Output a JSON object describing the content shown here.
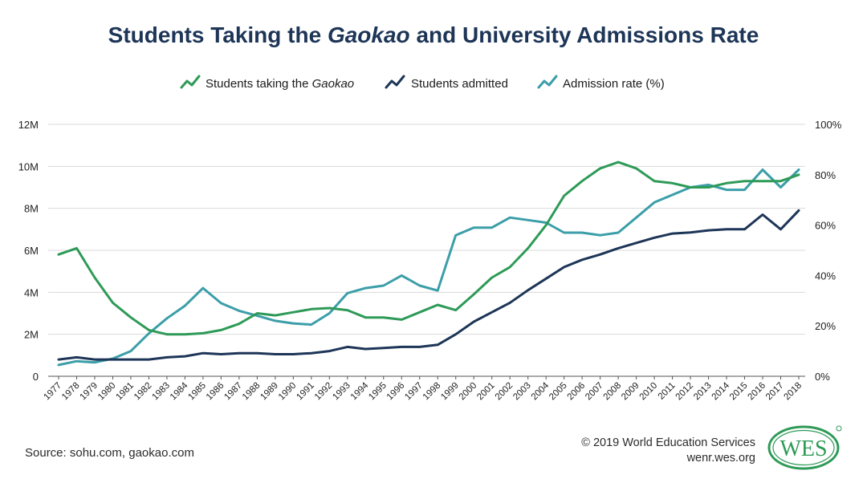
{
  "header": {
    "title_prefix": "Students Taking the",
    "title_italic": "Gaokao",
    "title_suffix": "and University Admissions Rate"
  },
  "footer": {
    "source": "Source: sohu.com, gaokao.com",
    "copyright": "© 2019 World Education Services",
    "site": "wenr.wes.org"
  },
  "logo": {
    "text": "WES",
    "color": "#2e9a57"
  },
  "chart_data": {
    "type": "line",
    "title": "Students Taking the Gaokao and University Admissions Rate",
    "categories": [
      "1977",
      "1978",
      "1979",
      "1980",
      "1981",
      "1982",
      "1983",
      "1984",
      "1985",
      "1986",
      "1987",
      "1988",
      "1989",
      "1990",
      "1991",
      "1992",
      "1993",
      "1994",
      "1995",
      "1996",
      "1997",
      "1998",
      "1999",
      "2000",
      "2001",
      "2002",
      "2003",
      "2004",
      "2005",
      "2006",
      "2007",
      "2008",
      "2009",
      "2010",
      "2011",
      "2012",
      "2013",
      "2014",
      "2015",
      "2016",
      "2017",
      "2018"
    ],
    "left_axis": {
      "ylim": [
        0,
        12
      ],
      "ticks": [
        "0",
        "2M",
        "4M",
        "6M",
        "8M",
        "10M",
        "12M"
      ]
    },
    "right_axis": {
      "ylim": [
        0,
        100
      ],
      "ticks": [
        "0%",
        "20%",
        "40%",
        "60%",
        "80%",
        "100%"
      ]
    },
    "legend": {
      "placement": "top-center",
      "taking_prefix": "Students taking the ",
      "taking_italic": "Gaokao",
      "admitted": "Students admitted",
      "rate": "Admission rate (%)"
    },
    "series": [
      {
        "name": "Students taking the Gaokao",
        "axis": "left",
        "unit": "millions",
        "color": "#2e9a57",
        "values": [
          5.8,
          6.1,
          4.7,
          3.5,
          2.8,
          2.2,
          2.0,
          2.0,
          2.05,
          2.2,
          2.5,
          3.0,
          2.9,
          3.05,
          3.2,
          3.25,
          3.15,
          2.8,
          2.8,
          2.7,
          3.05,
          3.4,
          3.15,
          3.9,
          4.7,
          5.2,
          6.1,
          7.2,
          8.6,
          9.3,
          9.9,
          10.2,
          9.9,
          9.3,
          9.2,
          9.0,
          9.0,
          9.2,
          9.3,
          9.3,
          9.3,
          9.6
        ]
      },
      {
        "name": "Students admitted",
        "axis": "left",
        "unit": "millions",
        "color": "#1d3557",
        "values": [
          0.8,
          0.9,
          0.8,
          0.8,
          0.8,
          0.8,
          0.9,
          0.95,
          1.1,
          1.05,
          1.1,
          1.1,
          1.05,
          1.05,
          1.1,
          1.2,
          1.4,
          1.3,
          1.35,
          1.4,
          1.4,
          1.5,
          2.0,
          2.6,
          3.05,
          3.5,
          4.1,
          4.65,
          5.2,
          5.55,
          5.8,
          6.1,
          6.35,
          6.6,
          6.8,
          6.85,
          6.95,
          7.0,
          7.0,
          7.7,
          7.0,
          7.9
        ]
      },
      {
        "name": "Admission rate (%)",
        "axis": "right",
        "unit": "percent",
        "color": "#3b9ea8",
        "values": [
          4.5,
          6,
          5.5,
          7,
          10,
          17,
          23,
          28,
          35,
          29,
          26,
          24,
          22,
          21,
          20.5,
          25,
          33,
          35,
          36,
          40,
          36,
          34,
          56,
          59,
          59,
          63,
          62,
          61,
          57,
          57,
          56,
          57,
          63,
          69,
          72,
          75,
          76,
          74,
          74,
          82,
          75,
          82
        ]
      }
    ]
  }
}
